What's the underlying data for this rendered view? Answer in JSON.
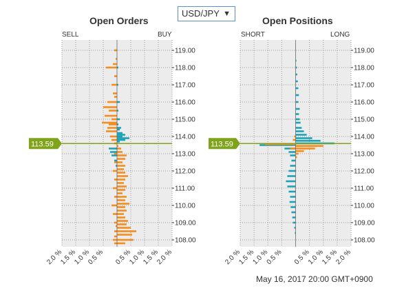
{
  "currency_select": {
    "value": "USD/JPY"
  },
  "timestamp": "May 16, 2017 20:00 GMT+0900",
  "colors": {
    "buy_long": "#1aa3b8",
    "sell_short": "#f58c1b",
    "price_marker": "#7fa31a",
    "plot_bg": "#ececec"
  },
  "chart_data": [
    {
      "type": "bar",
      "title": "Open Orders",
      "left_label": "SELL",
      "right_label": "BUY",
      "current_price": "113.59",
      "y_ticks": [
        "108.00",
        "109.00",
        "110.00",
        "111.00",
        "112.00",
        "113.00",
        "114.00",
        "115.00",
        "116.00",
        "117.00",
        "118.00",
        "119.00"
      ],
      "x_ticks": [
        "2.0 %",
        "1.5 %",
        "1.0 %",
        "0.5 %",
        "0.5 %",
        "1.0 %",
        "1.5 %",
        "2.0 %"
      ],
      "ylim": [
        107.6,
        119.6
      ],
      "xlim": [
        -2.0,
        2.0
      ],
      "axis_offset": 0.3,
      "grid": true,
      "series": [
        {
          "side": "left",
          "color": "sell_short",
          "points": [
            [
              107.8,
              0.1
            ],
            [
              108.0,
              0.15
            ],
            [
              108.2,
              0.1
            ],
            [
              108.5,
              0.1
            ],
            [
              108.8,
              0.05
            ],
            [
              109.0,
              0.1
            ],
            [
              109.5,
              0.15
            ],
            [
              110.0,
              0.2
            ],
            [
              110.5,
              0.1
            ],
            [
              111.0,
              0.15
            ],
            [
              111.5,
              0.1
            ],
            [
              112.0,
              0.15
            ],
            [
              112.5,
              0.1
            ],
            [
              113.0,
              0.1
            ],
            [
              113.3,
              0.05
            ],
            [
              113.6,
              0.1
            ],
            [
              113.8,
              0.2
            ],
            [
              114.0,
              0.25
            ],
            [
              114.3,
              0.4
            ],
            [
              114.5,
              0.35
            ],
            [
              114.7,
              0.3
            ],
            [
              114.8,
              0.55
            ],
            [
              115.0,
              0.2
            ],
            [
              115.2,
              0.45
            ],
            [
              115.5,
              0.3
            ],
            [
              115.7,
              0.5
            ],
            [
              116.0,
              0.35
            ],
            [
              116.3,
              0.1
            ],
            [
              116.5,
              0.15
            ],
            [
              117.0,
              0.2
            ],
            [
              117.5,
              0.1
            ],
            [
              118.0,
              0.4
            ],
            [
              118.2,
              0.15
            ],
            [
              118.5,
              0.05
            ],
            [
              119.0,
              0.1
            ]
          ]
        },
        {
          "side": "right",
          "color": "sell_short",
          "points": [
            [
              107.8,
              0.3
            ],
            [
              108.0,
              0.6
            ],
            [
              108.3,
              0.55
            ],
            [
              108.5,
              0.7
            ],
            [
              108.7,
              0.5
            ],
            [
              108.9,
              0.35
            ],
            [
              109.1,
              0.4
            ],
            [
              109.3,
              0.3
            ],
            [
              109.5,
              0.25
            ],
            [
              109.7,
              0.35
            ],
            [
              109.9,
              0.3
            ],
            [
              110.1,
              0.45
            ],
            [
              110.3,
              0.3
            ],
            [
              110.5,
              0.35
            ],
            [
              110.7,
              0.2
            ],
            [
              110.9,
              0.3
            ],
            [
              111.1,
              0.35
            ],
            [
              111.3,
              0.25
            ],
            [
              111.5,
              0.3
            ],
            [
              111.7,
              0.4
            ],
            [
              111.9,
              0.3
            ],
            [
              112.1,
              0.25
            ],
            [
              112.3,
              0.3
            ],
            [
              112.5,
              0.2
            ],
            [
              112.7,
              0.3
            ],
            [
              112.9,
              0.35
            ],
            [
              113.1,
              0.2
            ],
            [
              113.3,
              0.15
            ],
            [
              113.45,
              0.05
            ]
          ]
        },
        {
          "side": "right",
          "color": "buy_long",
          "points": [
            [
              113.7,
              0.1
            ],
            [
              113.8,
              0.3
            ],
            [
              113.9,
              0.45
            ],
            [
              114.0,
              0.2
            ],
            [
              114.1,
              0.3
            ],
            [
              114.2,
              0.2
            ],
            [
              114.4,
              0.1
            ],
            [
              114.5,
              0.15
            ],
            [
              114.7,
              0.05
            ],
            [
              115.0,
              0.1
            ],
            [
              115.5,
              0.05
            ],
            [
              116.0,
              0.1
            ],
            [
              117.0,
              0.05
            ],
            [
              118.0,
              0.05
            ]
          ]
        },
        {
          "side": "left",
          "color": "buy_long",
          "points": [
            [
              112.3,
              0.05
            ],
            [
              112.6,
              0.1
            ],
            [
              112.9,
              0.2
            ],
            [
              113.1,
              0.25
            ],
            [
              113.3,
              0.3
            ]
          ]
        }
      ]
    },
    {
      "type": "bar",
      "title": "Open Positions",
      "left_label": "SHORT",
      "right_label": "LONG",
      "current_price": "113.59",
      "y_ticks": [
        "108.00",
        "109.00",
        "110.00",
        "111.00",
        "112.00",
        "113.00",
        "114.00",
        "115.00",
        "116.00",
        "117.00",
        "118.00",
        "119.00"
      ],
      "x_ticks": [
        "2.0 %",
        "1.5 %",
        "1.0 %",
        "0.5 %",
        "0.5 %",
        "1.0 %",
        "1.5 %",
        "2.0 %"
      ],
      "ylim": [
        107.6,
        119.6
      ],
      "xlim": [
        -2.0,
        2.0
      ],
      "axis_offset": 0.0,
      "grid": true,
      "series": [
        {
          "side": "right",
          "color": "buy_long",
          "points": [
            [
              113.6,
              1.4
            ],
            [
              113.75,
              0.9
            ],
            [
              113.9,
              0.6
            ],
            [
              114.1,
              0.4
            ],
            [
              114.3,
              0.3
            ],
            [
              114.5,
              0.22
            ],
            [
              114.8,
              0.18
            ],
            [
              115.0,
              0.15
            ],
            [
              115.3,
              0.12
            ],
            [
              115.6,
              0.15
            ],
            [
              116.0,
              0.1
            ],
            [
              116.4,
              0.12
            ],
            [
              116.8,
              0.1
            ],
            [
              117.2,
              0.08
            ],
            [
              117.6,
              0.06
            ],
            [
              118.0,
              0.05
            ],
            [
              118.4,
              0.03
            ]
          ]
        },
        {
          "side": "left",
          "color": "buy_long",
          "points": [
            [
              113.5,
              1.3
            ],
            [
              113.3,
              0.4
            ],
            [
              113.1,
              0.25
            ],
            [
              112.9,
              0.2
            ],
            [
              112.6,
              0.15
            ],
            [
              112.3,
              0.2
            ],
            [
              112.0,
              0.25
            ],
            [
              111.7,
              0.3
            ],
            [
              111.4,
              0.35
            ],
            [
              111.1,
              0.3
            ],
            [
              110.8,
              0.25
            ],
            [
              110.5,
              0.2
            ],
            [
              110.2,
              0.22
            ],
            [
              109.9,
              0.18
            ],
            [
              109.6,
              0.15
            ],
            [
              109.3,
              0.12
            ],
            [
              109.0,
              0.1
            ],
            [
              108.7,
              0.05
            ],
            [
              108.4,
              0.03
            ]
          ]
        },
        {
          "side": "left",
          "color": "sell_short",
          "points": [
            [
              113.55,
              1.1
            ],
            [
              113.8,
              0.1
            ],
            [
              114.0,
              0.05
            ],
            [
              113.3,
              0.2
            ]
          ]
        },
        {
          "side": "right",
          "color": "sell_short",
          "points": [
            [
              113.45,
              1.0
            ],
            [
              113.3,
              0.7
            ],
            [
              113.15,
              0.3
            ],
            [
              113.0,
              0.1
            ],
            [
              112.8,
              0.05
            ]
          ]
        }
      ]
    }
  ]
}
